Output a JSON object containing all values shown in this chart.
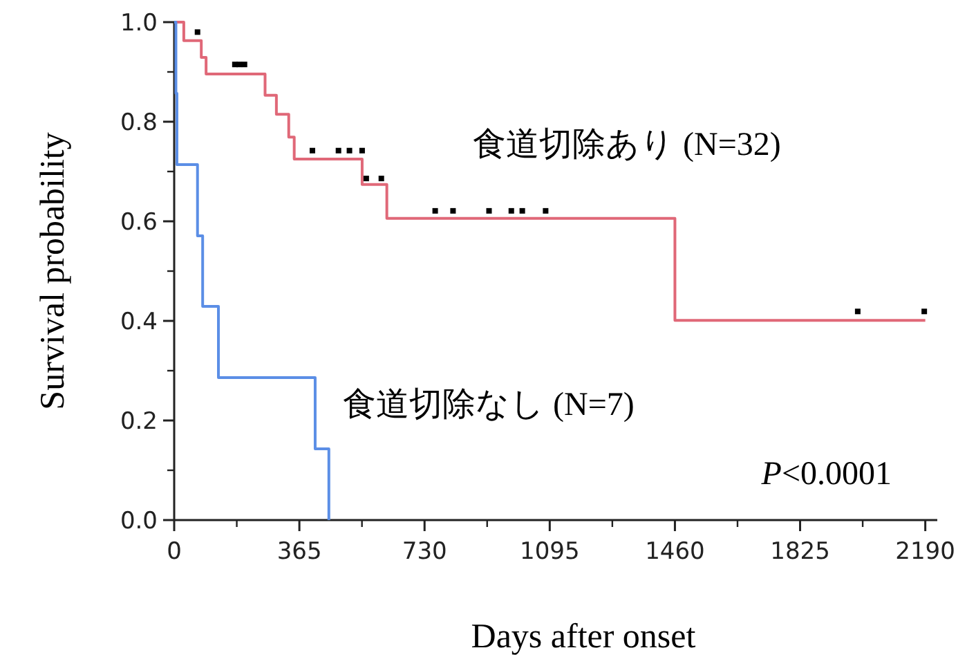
{
  "chart_data": {
    "type": "step",
    "xlabel": "Days after onset",
    "ylabel": "Survival probability",
    "xlim": [
      0,
      2225
    ],
    "ylim": [
      0,
      1.0
    ],
    "xticks": [
      0,
      365,
      730,
      1095,
      1460,
      1825,
      2190
    ],
    "yticks": [
      {
        "value": 0,
        "label": "0.0"
      },
      0.2,
      0.4,
      0.6,
      0.8,
      {
        "value": 1,
        "label": "1.0"
      }
    ],
    "grid": false,
    "series": [
      {
        "name": "食道切除あり (N=32)",
        "color": "#e06878",
        "x": [
          0,
          28,
          79,
          93,
          265,
          298,
          334,
          350,
          548,
          620,
          1460,
          2190
        ],
        "values": [
          1.0,
          0.963,
          0.929,
          0.896,
          0.853,
          0.815,
          0.769,
          0.725,
          0.674,
          0.606,
          0.401,
          0.401
        ]
      },
      {
        "name": "食道切除なし (N=7)",
        "color": "#5b8ee6",
        "x": [
          0,
          5,
          8,
          68,
          83,
          129,
          411,
          451
        ],
        "values": [
          1.0,
          0.857,
          0.714,
          0.571,
          0.429,
          0.286,
          0.143,
          0.0
        ]
      },
      {
        "type": "scatter",
        "marker": "square",
        "color": "#000000",
        "x": [
          68,
          177,
          190,
          205,
          403,
          479,
          511,
          548,
          560,
          604,
          761,
          813,
          918,
          983,
          1015,
          1083,
          1993,
          2187
        ],
        "values": [
          0.98,
          0.915,
          0.915,
          0.915,
          0.742,
          0.742,
          0.742,
          0.742,
          0.686,
          0.686,
          0.621,
          0.621,
          0.621,
          0.621,
          0.621,
          0.621,
          0.419,
          0.419
        ]
      }
    ],
    "annotations": [
      "P<0.0001"
    ]
  }
}
